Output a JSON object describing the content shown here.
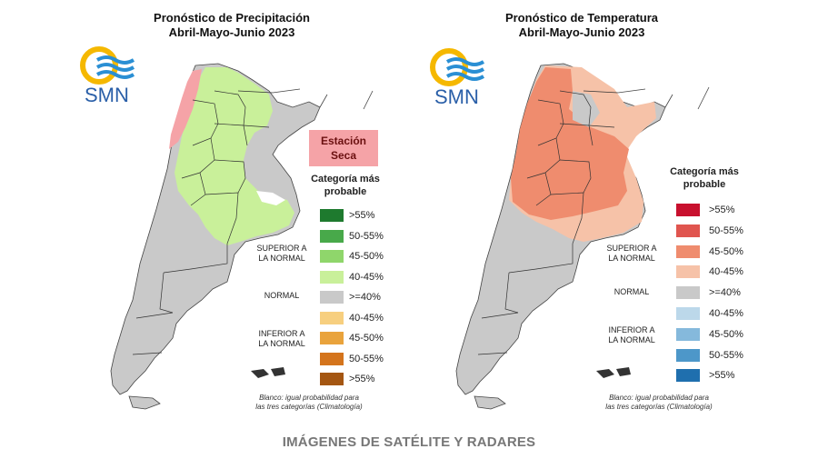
{
  "colors": {
    "gray": "#c9c9c9",
    "precip_green": "#c9f09a",
    "precip_dry": "#f5a3a7",
    "temp_orange": "#ef8c6e",
    "temp_light": "#f6c2a8",
    "logo_yellow": "#f5b800",
    "logo_blue": "#2a8fd4"
  },
  "left": {
    "title_line1": "Pronóstico de Precipitación",
    "title_line2": "Abril-Mayo-Junio 2023",
    "logo_text": "SMN",
    "badge_line1": "Estación",
    "badge_line2": "Seca",
    "legend_title_1": "Categoría más",
    "legend_title_2": "probable",
    "groups": {
      "superior_1": "SUPERIOR A",
      "superior_2": "LA NORMAL",
      "normal": "NORMAL",
      "inferior_1": "INFERIOR A",
      "inferior_2": "LA NORMAL"
    },
    "legend": [
      {
        "label": ">55%",
        "color": "#1e7a2e"
      },
      {
        "label": "50-55%",
        "color": "#48a94a"
      },
      {
        "label": "45-50%",
        "color": "#8fd66b"
      },
      {
        "label": "40-45%",
        "color": "#c9f09a"
      },
      {
        "label": ">=40%",
        "color": "#c9c9c9"
      },
      {
        "label": "40-45%",
        "color": "#f7cf7f"
      },
      {
        "label": "45-50%",
        "color": "#e9a33c"
      },
      {
        "label": "50-55%",
        "color": "#d4741c"
      },
      {
        "label": ">55%",
        "color": "#a45612"
      }
    ],
    "note_line1": "Blanco: igual probabilidad para",
    "note_line2": "las tres categorías (Climatología)"
  },
  "right": {
    "title_line1": "Pronóstico de Temperatura",
    "title_line2": "Abril-Mayo-Junio 2023",
    "logo_text": "SMN",
    "legend_title_1": "Categoría más",
    "legend_title_2": "probable",
    "groups": {
      "superior_1": "SUPERIOR A",
      "superior_2": "LA NORMAL",
      "normal": "NORMAL",
      "inferior_1": "INFERIOR A",
      "inferior_2": "LA NORMAL"
    },
    "legend": [
      {
        "label": ">55%",
        "color": "#c8102e"
      },
      {
        "label": "50-55%",
        "color": "#e0554f"
      },
      {
        "label": "45-50%",
        "color": "#ef8c6e"
      },
      {
        "label": "40-45%",
        "color": "#f6c2a8"
      },
      {
        "label": ">=40%",
        "color": "#c9c9c9"
      },
      {
        "label": "40-45%",
        "color": "#bcd8ea"
      },
      {
        "label": "45-50%",
        "color": "#85b9dc"
      },
      {
        "label": "50-55%",
        "color": "#4d97c9"
      },
      {
        "label": ">55%",
        "color": "#1f6fae"
      }
    ],
    "note_line1": "Blanco: igual probabilidad para",
    "note_line2": "las tres categorías (Climatología)"
  },
  "footer": "IMÁGENES DE SATÉLITE Y RADARES"
}
